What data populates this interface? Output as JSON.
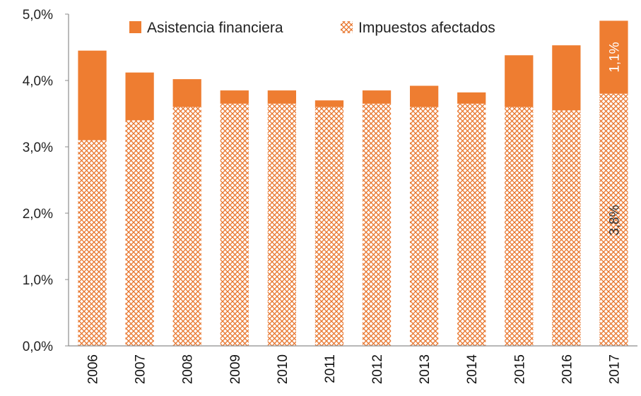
{
  "chart_data": {
    "type": "bar",
    "stacked": true,
    "categories": [
      "2006",
      "2007",
      "2008",
      "2009",
      "2010",
      "2011",
      "2012",
      "2013",
      "2014",
      "2015",
      "2016",
      "2017"
    ],
    "series": [
      {
        "name": "Impuestos afectados",
        "values": [
          3.1,
          3.4,
          3.6,
          3.65,
          3.65,
          3.6,
          3.65,
          3.6,
          3.65,
          3.6,
          3.55,
          3.8
        ],
        "pattern": "crosshatch",
        "color": "#e8742a"
      },
      {
        "name": "Asistencia financiera",
        "values": [
          1.35,
          0.72,
          0.42,
          0.2,
          0.2,
          0.1,
          0.2,
          0.32,
          0.17,
          0.78,
          0.98,
          1.1
        ],
        "pattern": "solid",
        "color": "#ee7d31"
      }
    ],
    "data_labels": [
      {
        "series": "Asistencia financiera",
        "category": "2017",
        "text": "1,1%",
        "color": "#ffffff"
      },
      {
        "series": "Impuestos afectados",
        "category": "2017",
        "text": "3,8%",
        "color": "#333333"
      }
    ],
    "yticks": [
      "0,0%",
      "1,0%",
      "2,0%",
      "3,0%",
      "4,0%",
      "5,0%"
    ],
    "ylim": [
      0,
      5
    ],
    "title": "",
    "xlabel": "",
    "ylabel": "",
    "grid": false,
    "legend_position": "top"
  }
}
